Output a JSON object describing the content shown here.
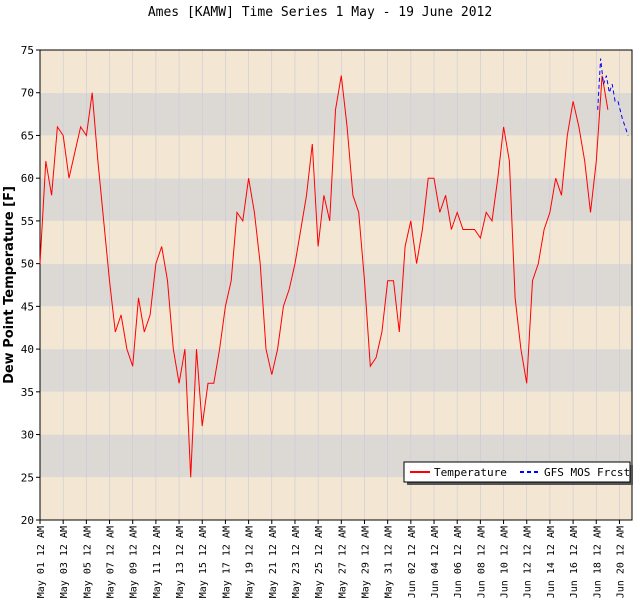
{
  "chart_data": {
    "type": "line",
    "title": "Ames [KAMW] Time Series 1 May - 19 June 2012",
    "y_label": "Dew Point Temperature [F]",
    "ylim": [
      20,
      75
    ],
    "yticks": [
      20,
      25,
      30,
      35,
      40,
      45,
      50,
      55,
      60,
      65,
      70,
      75
    ],
    "xlim": [
      "2012-05-01T00:00",
      "2012-06-21T02:00"
    ],
    "xticks": [
      {
        "value": "2012-05-01T00:00",
        "label": "May 01 12 AM"
      },
      {
        "value": "2012-05-03T00:00",
        "label": "May 03 12 AM"
      },
      {
        "value": "2012-05-05T00:00",
        "label": "May 05 12 AM"
      },
      {
        "value": "2012-05-07T00:00",
        "label": "May 07 12 AM"
      },
      {
        "value": "2012-05-09T00:00",
        "label": "May 09 12 AM"
      },
      {
        "value": "2012-05-11T00:00",
        "label": "May 11 12 AM"
      },
      {
        "value": "2012-05-13T00:00",
        "label": "May 13 12 AM"
      },
      {
        "value": "2012-05-15T00:00",
        "label": "May 15 12 AM"
      },
      {
        "value": "2012-05-17T00:00",
        "label": "May 17 12 AM"
      },
      {
        "value": "2012-05-19T00:00",
        "label": "May 19 12 AM"
      },
      {
        "value": "2012-05-21T00:00",
        "label": "May 21 12 AM"
      },
      {
        "value": "2012-05-23T00:00",
        "label": "May 23 12 AM"
      },
      {
        "value": "2012-05-25T00:00",
        "label": "May 25 12 AM"
      },
      {
        "value": "2012-05-27T00:00",
        "label": "May 27 12 AM"
      },
      {
        "value": "2012-05-29T00:00",
        "label": "May 29 12 AM"
      },
      {
        "value": "2012-05-31T00:00",
        "label": "May 31 12 AM"
      },
      {
        "value": "2012-06-02T00:00",
        "label": "Jun 02 12 AM"
      },
      {
        "value": "2012-06-04T00:00",
        "label": "Jun 04 12 AM"
      },
      {
        "value": "2012-06-06T00:00",
        "label": "Jun 06 12 AM"
      },
      {
        "value": "2012-06-08T00:00",
        "label": "Jun 08 12 AM"
      },
      {
        "value": "2012-06-10T00:00",
        "label": "Jun 10 12 AM"
      },
      {
        "value": "2012-06-12T00:00",
        "label": "Jun 12 12 AM"
      },
      {
        "value": "2012-06-14T00:00",
        "label": "Jun 14 12 AM"
      },
      {
        "value": "2012-06-16T00:00",
        "label": "Jun 16 12 AM"
      },
      {
        "value": "2012-06-18T00:00",
        "label": "Jun 18 12 AM"
      },
      {
        "value": "2012-06-20T00:00",
        "label": "Jun 20 12 AM"
      }
    ],
    "band_colors": [
      "#f3e7d3",
      "#dcd9d5"
    ],
    "legend": "lower right",
    "series": [
      {
        "name": "Temperature",
        "color": "#ff0000",
        "linestyle": "solid",
        "x": [
          "2012-05-01T00:00",
          "2012-05-01T12:00",
          "2012-05-02T00:00",
          "2012-05-02T12:00",
          "2012-05-03T00:00",
          "2012-05-03T12:00",
          "2012-05-04T00:00",
          "2012-05-04T12:00",
          "2012-05-05T00:00",
          "2012-05-05T12:00",
          "2012-05-06T00:00",
          "2012-05-06T12:00",
          "2012-05-07T00:00",
          "2012-05-07T12:00",
          "2012-05-08T00:00",
          "2012-05-08T12:00",
          "2012-05-09T00:00",
          "2012-05-09T12:00",
          "2012-05-10T00:00",
          "2012-05-10T12:00",
          "2012-05-11T00:00",
          "2012-05-11T12:00",
          "2012-05-12T00:00",
          "2012-05-12T12:00",
          "2012-05-13T00:00",
          "2012-05-13T12:00",
          "2012-05-14T00:00",
          "2012-05-14T12:00",
          "2012-05-15T00:00",
          "2012-05-15T12:00",
          "2012-05-16T00:00",
          "2012-05-16T12:00",
          "2012-05-17T00:00",
          "2012-05-17T12:00",
          "2012-05-18T00:00",
          "2012-05-18T12:00",
          "2012-05-19T00:00",
          "2012-05-19T12:00",
          "2012-05-20T00:00",
          "2012-05-20T12:00",
          "2012-05-21T00:00",
          "2012-05-21T12:00",
          "2012-05-22T00:00",
          "2012-05-22T12:00",
          "2012-05-23T00:00",
          "2012-05-23T12:00",
          "2012-05-24T00:00",
          "2012-05-24T12:00",
          "2012-05-25T00:00",
          "2012-05-25T12:00",
          "2012-05-26T00:00",
          "2012-05-26T12:00",
          "2012-05-27T00:00",
          "2012-05-27T12:00",
          "2012-05-28T00:00",
          "2012-05-28T12:00",
          "2012-05-29T00:00",
          "2012-05-29T12:00",
          "2012-05-30T00:00",
          "2012-05-30T12:00",
          "2012-05-31T00:00",
          "2012-05-31T12:00",
          "2012-06-01T00:00",
          "2012-06-01T12:00",
          "2012-06-02T00:00",
          "2012-06-02T12:00",
          "2012-06-03T00:00",
          "2012-06-03T12:00",
          "2012-06-04T00:00",
          "2012-06-04T12:00",
          "2012-06-05T00:00",
          "2012-06-05T12:00",
          "2012-06-06T00:00",
          "2012-06-06T12:00",
          "2012-06-07T00:00",
          "2012-06-07T12:00",
          "2012-06-08T00:00",
          "2012-06-08T12:00",
          "2012-06-09T00:00",
          "2012-06-09T12:00",
          "2012-06-10T00:00",
          "2012-06-10T12:00",
          "2012-06-11T00:00",
          "2012-06-11T12:00",
          "2012-06-12T00:00",
          "2012-06-12T12:00",
          "2012-06-13T00:00",
          "2012-06-13T12:00",
          "2012-06-14T00:00",
          "2012-06-14T12:00",
          "2012-06-15T00:00",
          "2012-06-15T12:00",
          "2012-06-16T00:00",
          "2012-06-16T12:00",
          "2012-06-17T00:00",
          "2012-06-17T12:00",
          "2012-06-18T00:00",
          "2012-06-18T12:00",
          "2012-06-19T00:00"
        ],
        "values": [
          50,
          62,
          58,
          66,
          65,
          60,
          63,
          66,
          65,
          70,
          62,
          55,
          48,
          42,
          44,
          40,
          38,
          46,
          42,
          44,
          50,
          52,
          48,
          40,
          36,
          40,
          25,
          40,
          31,
          36,
          36,
          40,
          45,
          48,
          56,
          55,
          60,
          56,
          50,
          40,
          37,
          40,
          45,
          47,
          50,
          54,
          58,
          64,
          52,
          58,
          55,
          68,
          72,
          66,
          58,
          56,
          48,
          38,
          39,
          42,
          48,
          48,
          42,
          52,
          55,
          50,
          54,
          60,
          60,
          56,
          58,
          54,
          56,
          54,
          54,
          54,
          53,
          56,
          55,
          60,
          66,
          62,
          46,
          40,
          36,
          48,
          50,
          54,
          56,
          60,
          58,
          65,
          69,
          66,
          62,
          56,
          62,
          72,
          68
        ]
      },
      {
        "name": "GFS MOS Frcst",
        "color": "#0000ff",
        "linestyle": "dashed",
        "x": [
          "2012-06-18T03:00",
          "2012-06-18T09:00",
          "2012-06-18T15:00",
          "2012-06-18T21:00",
          "2012-06-19T03:00",
          "2012-06-19T09:00",
          "2012-06-19T15:00",
          "2012-06-19T21:00",
          "2012-06-20T06:00",
          "2012-06-20T18:00"
        ],
        "values": [
          68,
          74,
          71,
          72,
          70,
          71,
          69,
          69,
          67,
          65
        ]
      }
    ]
  }
}
